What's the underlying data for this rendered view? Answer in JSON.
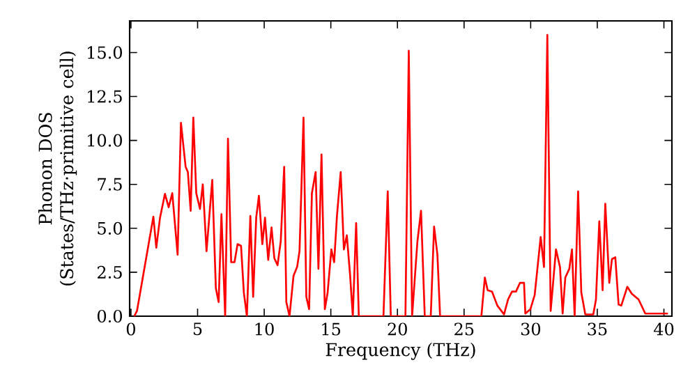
{
  "chart_data": {
    "type": "line",
    "xlabel": "Frequency (THz)",
    "ylabel": "Phonon DOS (States/THz·primitive cell)",
    "xlim": [
      -0.1,
      40.6
    ],
    "ylim": [
      0,
      16.8
    ],
    "xticks": [
      0,
      5,
      10,
      15,
      20,
      25,
      30,
      35,
      40
    ],
    "yticks": [
      {
        "value": 0,
        "label": "0.0"
      },
      {
        "value": 2.5,
        "label": "2.5"
      },
      {
        "value": 5,
        "label": "5.0"
      },
      {
        "value": 7.5,
        "label": "7.5"
      },
      {
        "value": 10,
        "label": "10.0"
      },
      {
        "value": 12.5,
        "label": "12.5"
      },
      {
        "value": 15,
        "label": "15.0"
      }
    ],
    "marker": "none",
    "line_style": "solid",
    "series": [
      {
        "color": "#ff0000",
        "x": [
          0.25,
          0.45,
          1.68,
          1.9,
          2.18,
          2.55,
          2.83,
          3.1,
          3.5,
          3.75,
          4.1,
          4.27,
          4.48,
          4.68,
          4.9,
          5.18,
          5.39,
          5.67,
          6.1,
          6.37,
          6.58,
          6.79,
          7.07,
          7.28,
          7.52,
          7.77,
          8.0,
          8.26,
          8.47,
          8.7,
          8.96,
          9.17,
          9.4,
          9.6,
          9.86,
          10.06,
          10.3,
          10.55,
          10.76,
          11.0,
          11.24,
          11.5,
          11.66,
          11.9,
          12.2,
          12.47,
          12.65,
          12.95,
          13.16,
          13.37,
          13.58,
          13.86,
          14.07,
          14.3,
          14.55,
          14.76,
          15.04,
          15.25,
          15.46,
          15.74,
          15.98,
          16.2,
          16.44,
          16.65,
          16.9,
          17.1,
          18.95,
          19.27,
          19.5,
          20.6,
          20.85,
          21.1,
          21.5,
          21.77,
          22.05,
          22.5,
          22.75,
          23.0,
          23.2,
          26.3,
          26.56,
          26.77,
          27.1,
          27.5,
          27.8,
          28.0,
          28.3,
          28.6,
          28.9,
          29.2,
          29.5,
          29.6,
          29.98,
          30.3,
          30.75,
          31.0,
          31.25,
          31.5,
          31.9,
          32.2,
          32.4,
          32.6,
          32.9,
          33.1,
          33.3,
          33.56,
          33.8,
          34.1,
          34.7,
          34.9,
          35.15,
          35.4,
          35.6,
          35.9,
          36.1,
          36.35,
          36.6,
          36.8,
          37.25,
          37.6,
          38.1,
          38.6,
          40.3
        ],
        "values": [
          0,
          0.3,
          5.66,
          3.9,
          5.6,
          6.96,
          6.2,
          7.0,
          3.5,
          11.0,
          8.5,
          8.2,
          6.0,
          11.3,
          7.0,
          6.1,
          7.5,
          3.7,
          7.75,
          1.6,
          0.8,
          5.8,
          0,
          10.1,
          3.07,
          3.07,
          4.1,
          4.0,
          1.35,
          0,
          5.7,
          1.1,
          5.6,
          6.85,
          4.1,
          5.6,
          3.2,
          5.05,
          3.3,
          2.9,
          4.26,
          8.5,
          0.8,
          0,
          2.3,
          2.8,
          3.7,
          11.3,
          1.1,
          0.4,
          7.0,
          8.2,
          2.7,
          9.2,
          0.4,
          1.35,
          3.8,
          3.07,
          5.7,
          8.2,
          3.8,
          4.6,
          2.4,
          0,
          5.3,
          0,
          0,
          7.1,
          0,
          0,
          15.1,
          0,
          4.26,
          6.0,
          0,
          0,
          5.1,
          3.5,
          0,
          0,
          2.2,
          1.48,
          1.4,
          0.6,
          0.3,
          0.1,
          0.95,
          1.4,
          1.4,
          1.9,
          1.9,
          0.15,
          0.4,
          1.2,
          4.5,
          2.8,
          16.0,
          0.3,
          3.8,
          2.8,
          0.15,
          2.2,
          2.7,
          3.8,
          0,
          7.1,
          1.35,
          0.1,
          0.1,
          0.95,
          5.4,
          1.48,
          6.4,
          1.9,
          3.25,
          3.35,
          0.66,
          0.6,
          1.67,
          1.27,
          0.95,
          0.15,
          0.15
        ]
      }
    ]
  }
}
